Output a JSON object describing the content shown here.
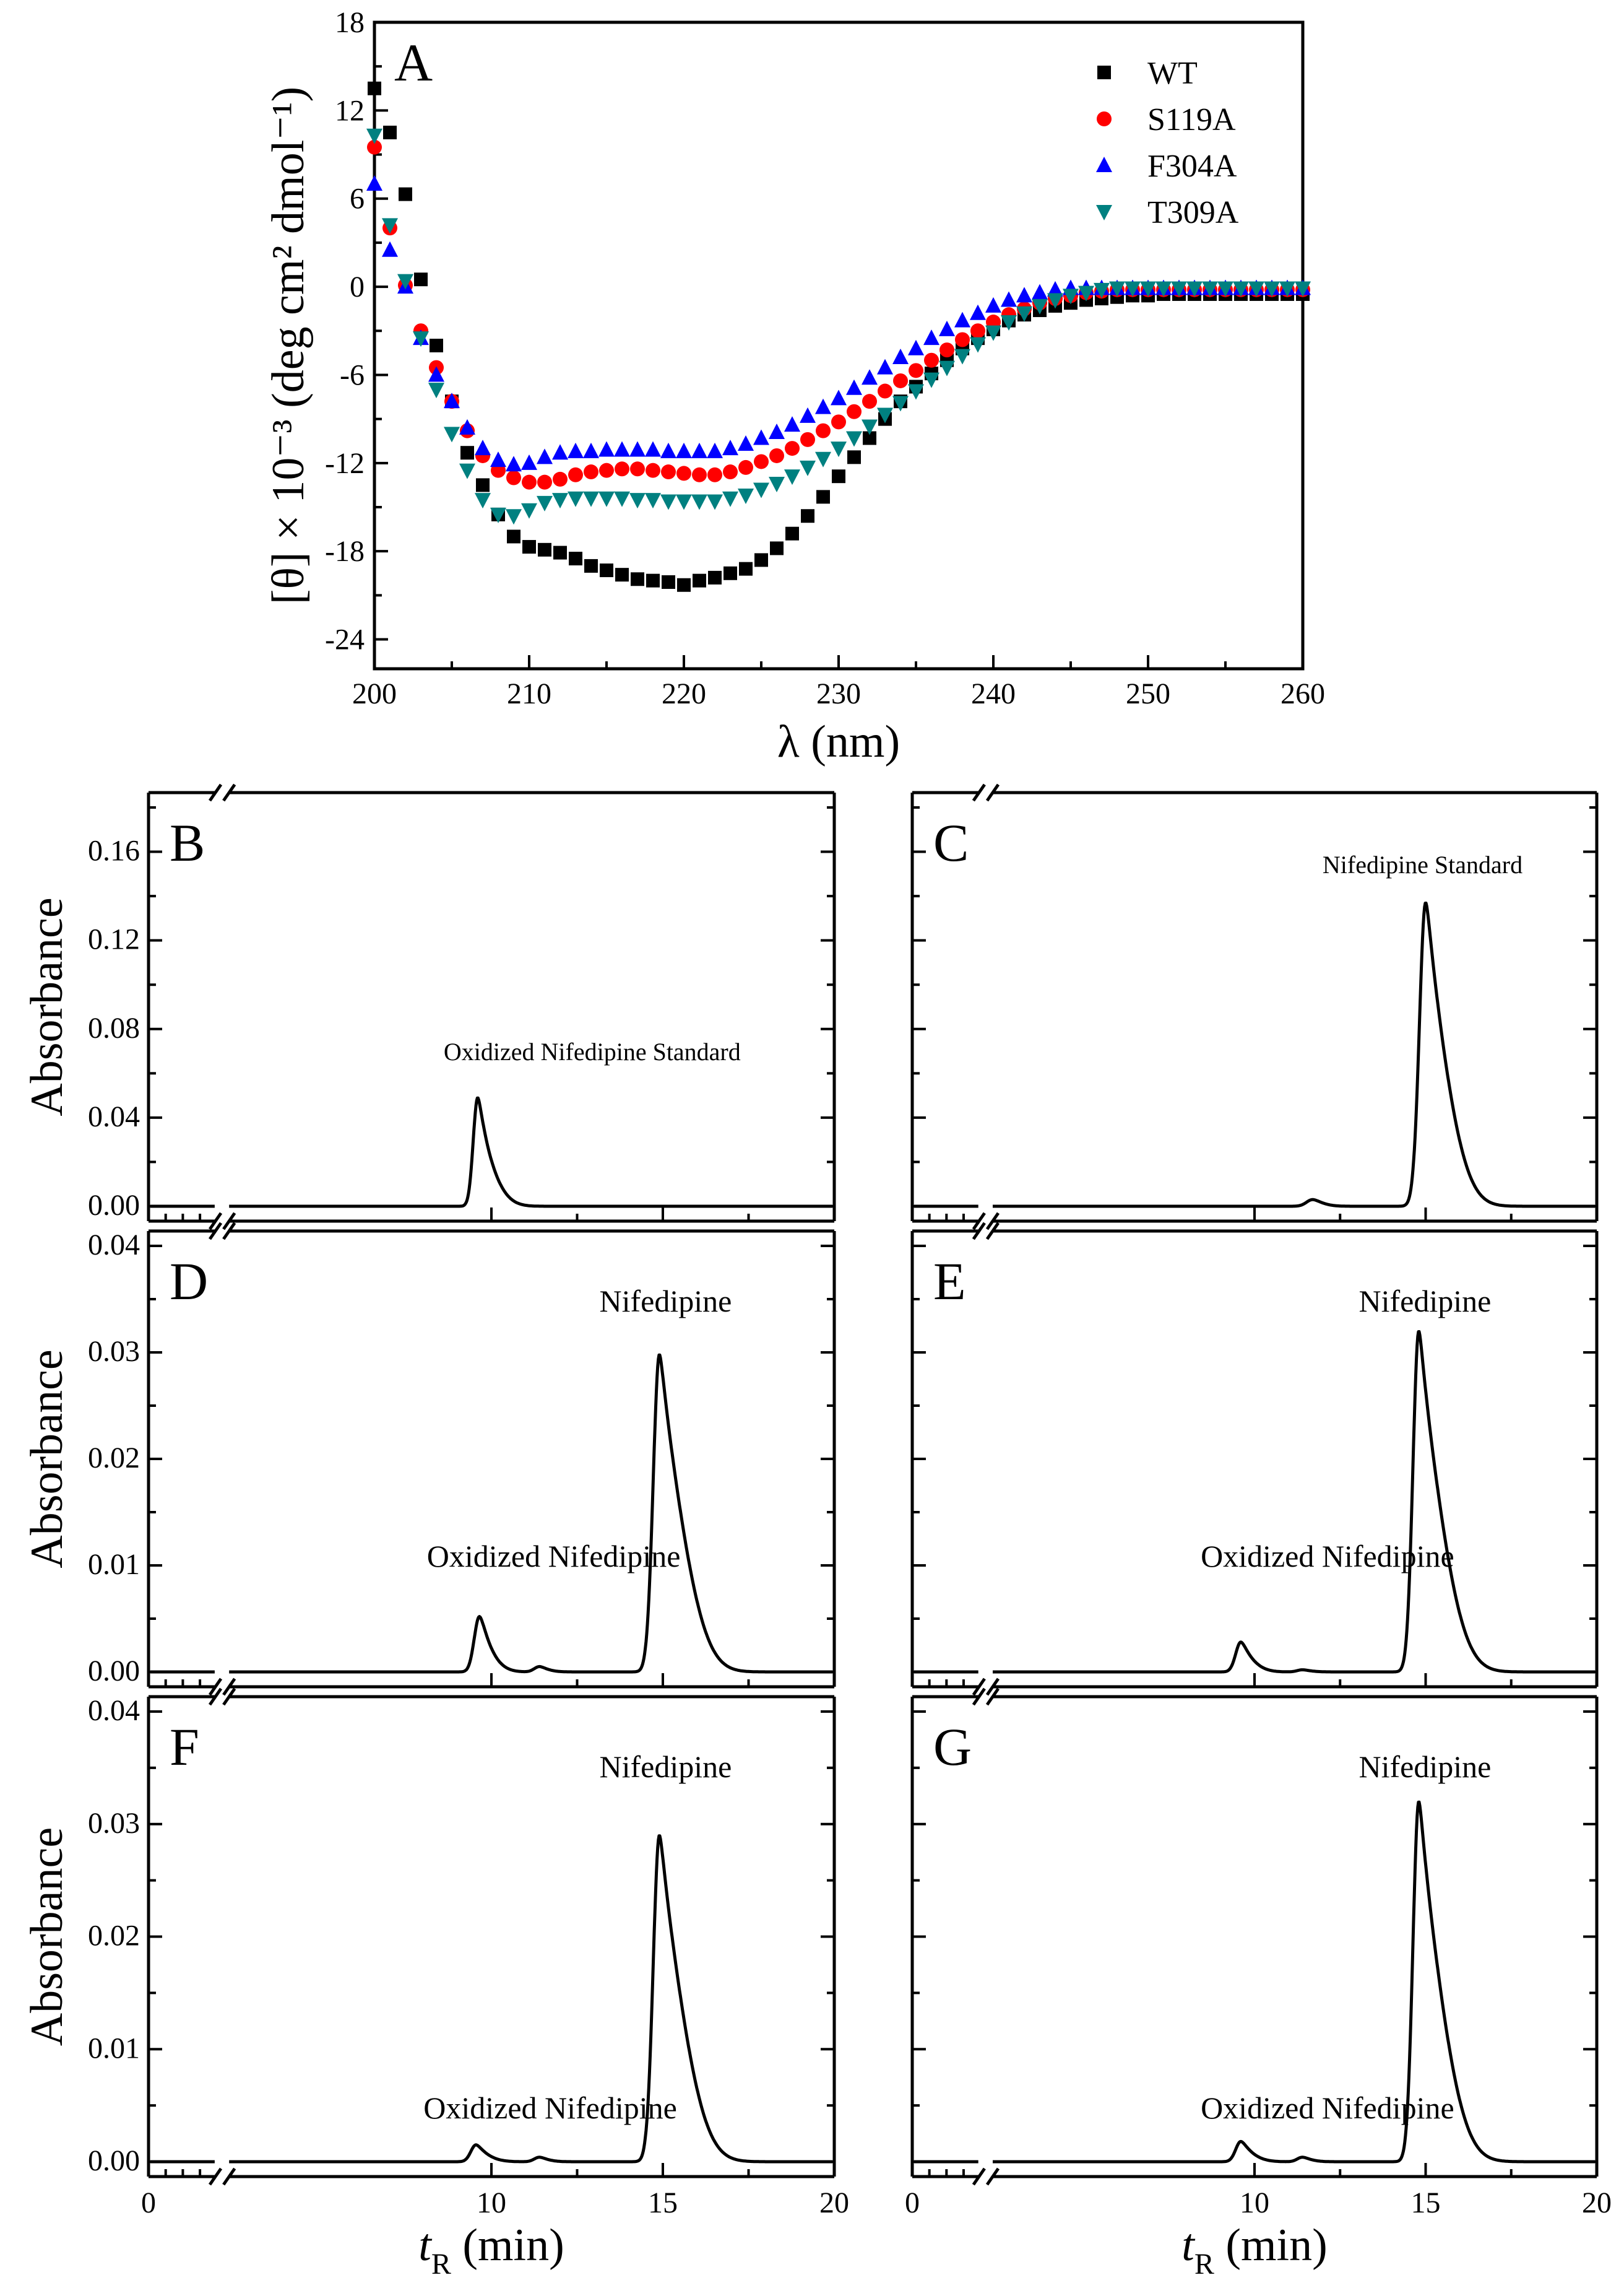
{
  "chart_data": [
    {
      "panel": "A",
      "type": "scatter",
      "xlabel": "λ (nm)",
      "ylabel": "[θ] × 10⁻³ (deg cm² dmol⁻¹)",
      "xlim": [
        200,
        260
      ],
      "ylim": [
        -26,
        18
      ],
      "xticks": [
        200,
        210,
        220,
        230,
        240,
        250,
        260
      ],
      "yticks": [
        -24,
        -18,
        -12,
        -6,
        0,
        6,
        12,
        18
      ],
      "legend_position": "top-right",
      "series": [
        {
          "name": "WT",
          "marker": "square",
          "color": "#000000",
          "x": [
            200,
            201,
            202,
            203,
            204,
            205,
            206,
            207,
            208,
            209,
            210,
            211,
            212,
            213,
            214,
            215,
            216,
            217,
            218,
            219,
            220,
            221,
            222,
            223,
            224,
            225,
            226,
            227,
            228,
            229,
            230,
            231,
            232,
            233,
            234,
            235,
            236,
            237,
            238,
            239,
            240,
            241,
            242,
            243,
            244,
            245,
            246,
            247,
            248,
            249,
            250,
            251,
            252,
            253,
            254,
            255,
            256,
            257,
            258,
            259,
            260
          ],
          "y": [
            13.5,
            10.5,
            6.3,
            0.5,
            -4,
            -7.8,
            -11.3,
            -13.5,
            -15.5,
            -17,
            -17.7,
            -17.9,
            -18.1,
            -18.5,
            -19,
            -19.3,
            -19.6,
            -19.9,
            -20,
            -20.1,
            -20.3,
            -20,
            -19.8,
            -19.5,
            -19.2,
            -18.6,
            -17.8,
            -16.8,
            -15.6,
            -14.3,
            -12.9,
            -11.6,
            -10.3,
            -9,
            -7.8,
            -6.8,
            -5.9,
            -5,
            -4.2,
            -3.5,
            -2.9,
            -2.3,
            -1.9,
            -1.6,
            -1.3,
            -1.1,
            -0.9,
            -0.8,
            -0.7,
            -0.6,
            -0.6,
            -0.5,
            -0.5,
            -0.5,
            -0.5,
            -0.5,
            -0.5,
            -0.5,
            -0.5,
            -0.5,
            -0.5
          ]
        },
        {
          "name": "S119A",
          "marker": "circle",
          "color": "#ff0000",
          "x": [
            200,
            201,
            202,
            203,
            204,
            205,
            206,
            207,
            208,
            209,
            210,
            211,
            212,
            213,
            214,
            215,
            216,
            217,
            218,
            219,
            220,
            221,
            222,
            223,
            224,
            225,
            226,
            227,
            228,
            229,
            230,
            231,
            232,
            233,
            234,
            235,
            236,
            237,
            238,
            239,
            240,
            241,
            242,
            243,
            244,
            245,
            246,
            247,
            248,
            249,
            250,
            251,
            252,
            253,
            254,
            255,
            256,
            257,
            258,
            259,
            260
          ],
          "y": [
            9.5,
            4,
            0.1,
            -3,
            -5.5,
            -7.8,
            -9.8,
            -11.5,
            -12.5,
            -13,
            -13.3,
            -13.3,
            -13.1,
            -12.8,
            -12.6,
            -12.5,
            -12.4,
            -12.4,
            -12.5,
            -12.6,
            -12.7,
            -12.8,
            -12.8,
            -12.6,
            -12.3,
            -11.9,
            -11.5,
            -11,
            -10.4,
            -9.8,
            -9.2,
            -8.5,
            -7.8,
            -7.1,
            -6.4,
            -5.7,
            -5,
            -4.3,
            -3.6,
            -3,
            -2.4,
            -1.9,
            -1.5,
            -1.1,
            -0.8,
            -0.6,
            -0.4,
            -0.3,
            -0.2,
            -0.2,
            -0.2,
            -0.2,
            -0.2,
            -0.2,
            -0.2,
            -0.2,
            -0.2,
            -0.2,
            -0.2,
            -0.2,
            -0.2
          ]
        },
        {
          "name": "F304A",
          "marker": "triangle-up",
          "color": "#0000ff",
          "x": [
            200,
            201,
            202,
            203,
            204,
            205,
            206,
            207,
            208,
            209,
            210,
            211,
            212,
            213,
            214,
            215,
            216,
            217,
            218,
            219,
            220,
            221,
            222,
            223,
            224,
            225,
            226,
            227,
            228,
            229,
            230,
            231,
            232,
            233,
            234,
            235,
            236,
            237,
            238,
            239,
            240,
            241,
            242,
            243,
            244,
            245,
            246,
            247,
            248,
            249,
            250,
            251,
            252,
            253,
            254,
            255,
            256,
            257,
            258,
            259,
            260
          ],
          "y": [
            7,
            2.5,
            0,
            -3.5,
            -6,
            -7.8,
            -9.6,
            -11,
            -11.8,
            -12.1,
            -12,
            -11.6,
            -11.3,
            -11.2,
            -11.2,
            -11.1,
            -11.1,
            -11.1,
            -11.1,
            -11.2,
            -11.2,
            -11.2,
            -11.2,
            -11,
            -10.7,
            -10.3,
            -9.9,
            -9.4,
            -8.8,
            -8.2,
            -7.6,
            -6.9,
            -6.2,
            -5.5,
            -4.8,
            -4.2,
            -3.5,
            -2.9,
            -2.3,
            -1.8,
            -1.3,
            -0.9,
            -0.6,
            -0.4,
            -0.2,
            -0.1,
            -0.1,
            -0.1,
            -0.1,
            -0.1,
            -0.1,
            -0.1,
            -0.1,
            -0.1,
            -0.1,
            -0.1,
            -0.1,
            -0.1,
            -0.1,
            -0.1,
            -0.1
          ]
        },
        {
          "name": "T309A",
          "marker": "triangle-down",
          "color": "#008080",
          "x": [
            200,
            201,
            202,
            203,
            204,
            205,
            206,
            207,
            208,
            209,
            210,
            211,
            212,
            213,
            214,
            215,
            216,
            217,
            218,
            219,
            220,
            221,
            222,
            223,
            224,
            225,
            226,
            227,
            228,
            229,
            230,
            231,
            232,
            233,
            234,
            235,
            236,
            237,
            238,
            239,
            240,
            241,
            242,
            243,
            244,
            245,
            246,
            247,
            248,
            249,
            250,
            251,
            252,
            253,
            254,
            255,
            256,
            257,
            258,
            259,
            260
          ],
          "y": [
            10.3,
            4.2,
            0.4,
            -3.5,
            -7,
            -10,
            -12.5,
            -14.5,
            -15.5,
            -15.6,
            -15.2,
            -14.7,
            -14.5,
            -14.4,
            -14.4,
            -14.4,
            -14.4,
            -14.5,
            -14.5,
            -14.6,
            -14.6,
            -14.6,
            -14.6,
            -14.4,
            -14.2,
            -13.8,
            -13.4,
            -12.9,
            -12.3,
            -11.7,
            -11,
            -10.3,
            -9.5,
            -8.7,
            -7.9,
            -7.1,
            -6.3,
            -5.5,
            -4.7,
            -3.9,
            -3.1,
            -2.4,
            -1.8,
            -1.3,
            -0.9,
            -0.6,
            -0.4,
            -0.2,
            -0.1,
            -0.1,
            -0.1,
            -0.1,
            -0.1,
            -0.1,
            -0.1,
            -0.1,
            -0.1,
            -0.1,
            -0.1,
            -0.1,
            -0.1
          ]
        }
      ]
    },
    {
      "panel": "B",
      "type": "line",
      "ylabel": "Absorbance",
      "xlim": [
        0,
        20
      ],
      "ylim": [
        0,
        0.18
      ],
      "yticks": [
        0.0,
        0.04,
        0.08,
        0.12,
        0.16
      ],
      "axis_break": true,
      "peaks": [
        {
          "label": "Oxidized Nifedipine Standard",
          "center": 9.6,
          "height": 0.049,
          "width": 0.13,
          "tail": 0.6
        }
      ]
    },
    {
      "panel": "C",
      "type": "line",
      "xlim": [
        0,
        20
      ],
      "ylim": [
        0,
        0.18
      ],
      "axis_break": true,
      "peaks": [
        {
          "label": "",
          "center": 11.7,
          "height": 0.003,
          "width": 0.18,
          "tail": 0.3
        },
        {
          "label": "Nifedipine Standard",
          "center": 15.0,
          "height": 0.137,
          "width": 0.18,
          "tail": 0.8
        }
      ]
    },
    {
      "panel": "D",
      "type": "line",
      "ylabel": "Absorbance",
      "xlim": [
        0,
        20
      ],
      "ylim": [
        0,
        0.04
      ],
      "yticks": [
        0.0,
        0.01,
        0.02,
        0.03,
        0.04
      ],
      "axis_break": true,
      "peaks": [
        {
          "label": "Oxidized Nifedipine",
          "center": 9.65,
          "height": 0.0052,
          "width": 0.15,
          "tail": 0.45
        },
        {
          "label": "",
          "center": 11.4,
          "height": 0.0005,
          "width": 0.15,
          "tail": 0.3
        },
        {
          "label": "Nifedipine",
          "center": 14.9,
          "height": 0.0298,
          "width": 0.18,
          "tail": 0.9
        }
      ]
    },
    {
      "panel": "E",
      "type": "line",
      "xlim": [
        0,
        20
      ],
      "ylim": [
        0,
        0.04
      ],
      "axis_break": true,
      "peaks": [
        {
          "label": "Oxidized Nifedipine",
          "center": 9.6,
          "height": 0.0028,
          "width": 0.15,
          "tail": 0.45
        },
        {
          "label": "",
          "center": 11.4,
          "height": 0.0002,
          "width": 0.15,
          "tail": 0.3
        },
        {
          "label": "Nifedipine",
          "center": 14.8,
          "height": 0.032,
          "width": 0.17,
          "tail": 0.9
        }
      ]
    },
    {
      "panel": "F",
      "type": "line",
      "ylabel": "Absorbance",
      "xlim": [
        0,
        20
      ],
      "ylim": [
        0,
        0.04
      ],
      "yticks": [
        0.0,
        0.01,
        0.02,
        0.03,
        0.04
      ],
      "xticks": [
        0,
        10,
        15,
        20
      ],
      "xlabel": "tR (min)",
      "axis_break": true,
      "peaks": [
        {
          "label": "Oxidized Nifedipine",
          "center": 9.55,
          "height": 0.0015,
          "width": 0.15,
          "tail": 0.45
        },
        {
          "label": "",
          "center": 11.4,
          "height": 0.0004,
          "width": 0.15,
          "tail": 0.3
        },
        {
          "label": "Nifedipine",
          "center": 14.9,
          "height": 0.029,
          "width": 0.18,
          "tail": 0.9
        }
      ]
    },
    {
      "panel": "G",
      "type": "line",
      "xlim": [
        0,
        20
      ],
      "ylim": [
        0,
        0.04
      ],
      "xticks": [
        0,
        10,
        15,
        20
      ],
      "xlabel": "tR (min)",
      "axis_break": true,
      "peaks": [
        {
          "label": "Oxidized Nifedipine",
          "center": 9.6,
          "height": 0.0018,
          "width": 0.15,
          "tail": 0.45
        },
        {
          "label": "",
          "center": 11.4,
          "height": 0.0004,
          "width": 0.15,
          "tail": 0.3
        },
        {
          "label": "Nifedipine",
          "center": 14.8,
          "height": 0.032,
          "width": 0.17,
          "tail": 0.9
        }
      ]
    }
  ]
}
